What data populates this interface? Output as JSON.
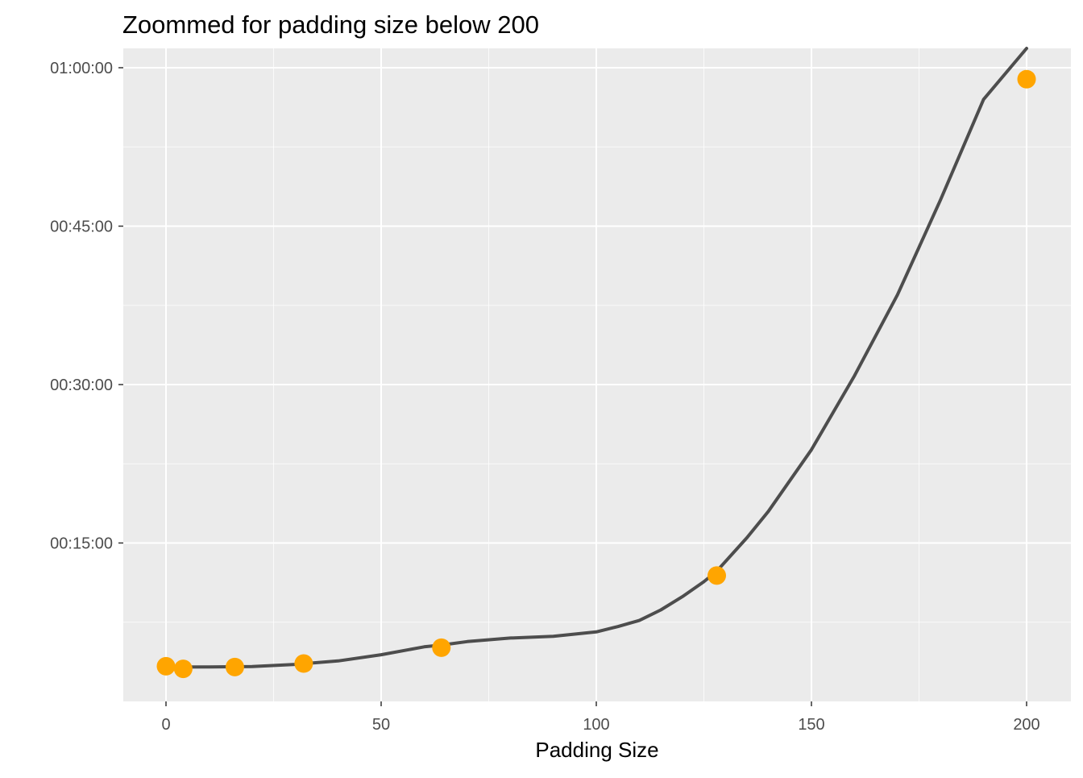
{
  "chart_data": {
    "type": "line",
    "title": "Zoommed for padding size below 200",
    "xlabel": "Padding Size",
    "ylabel": "",
    "xlim": [
      -10,
      210
    ],
    "ylim_seconds": [
      0,
      3600
    ],
    "x_ticks": [
      0,
      50,
      100,
      150,
      200
    ],
    "x_tick_labels": [
      "0",
      "50",
      "100",
      "150",
      "200"
    ],
    "y_ticks_seconds": [
      900,
      1800,
      2700,
      3600
    ],
    "y_tick_labels": [
      "00:15:00",
      "00:30:00",
      "00:45:00",
      "01:00:00"
    ],
    "grid": true,
    "legend": "none",
    "colors": {
      "panel": "#ebebeb",
      "grid": "#ffffff",
      "points": "#ffa500",
      "line": "#4d4d4d",
      "tick_text": "#4d4d4d"
    },
    "series": [
      {
        "kind": "points",
        "x": [
          0,
          4,
          16,
          32,
          64,
          128,
          200
        ],
        "y_hms": [
          "00:03:20",
          "00:03:05",
          "00:03:15",
          "00:03:35",
          "00:05:05",
          "00:11:55",
          "00:58:55"
        ],
        "y_seconds": [
          200,
          185,
          195,
          215,
          305,
          715,
          3535
        ]
      },
      {
        "kind": "smooth-line",
        "x": [
          0,
          10,
          20,
          30,
          40,
          50,
          60,
          64,
          70,
          80,
          90,
          100,
          105,
          110,
          115,
          120,
          125,
          128,
          135,
          140,
          150,
          160,
          170,
          180,
          190,
          200
        ],
        "y_seconds": [
          195,
          196,
          198,
          210,
          230,
          265,
          310,
          320,
          340,
          360,
          370,
          395,
          425,
          460,
          520,
          595,
          680,
          740,
          930,
          1080,
          1430,
          1850,
          2310,
          2850,
          3420,
          4020
        ]
      }
    ]
  }
}
